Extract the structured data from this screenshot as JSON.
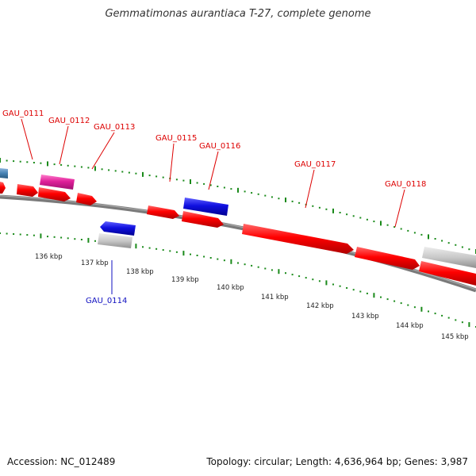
{
  "title": "Gemmatimonas aurantiaca T-27, complete genome",
  "footer": {
    "accession": "Accession: NC_012489",
    "summary": "Topology: circular; Length: 4,636,964 bp; Genes: 3,987"
  },
  "colors": {
    "plus_gene": "#ff0000",
    "minus_gene": "#1010e0",
    "pseudo_gene": "#e0209a",
    "rna_gene": "#c8c8c8",
    "other_gene": "#4682b4",
    "backbone": "#808080",
    "ticks": "#1a8a1a",
    "kbp_label": "#222222"
  },
  "kbp_ticks": [
    "136 kbp",
    "137 kbp",
    "138 kbp",
    "139 kbp",
    "140 kbp",
    "141 kbp",
    "142 kbp",
    "143 kbp",
    "144 kbp",
    "145 kbp"
  ],
  "gene_labels": [
    {
      "name": "GAU_0111",
      "strand": "plus"
    },
    {
      "name": "GAU_0112",
      "strand": "plus"
    },
    {
      "name": "GAU_0113",
      "strand": "plus"
    },
    {
      "name": "GAU_0114",
      "strand": "minus"
    },
    {
      "name": "GAU_0115",
      "strand": "plus"
    },
    {
      "name": "GAU_0116",
      "strand": "plus"
    },
    {
      "name": "GAU_0117",
      "strand": "plus"
    },
    {
      "name": "GAU_0118",
      "strand": "plus"
    }
  ]
}
